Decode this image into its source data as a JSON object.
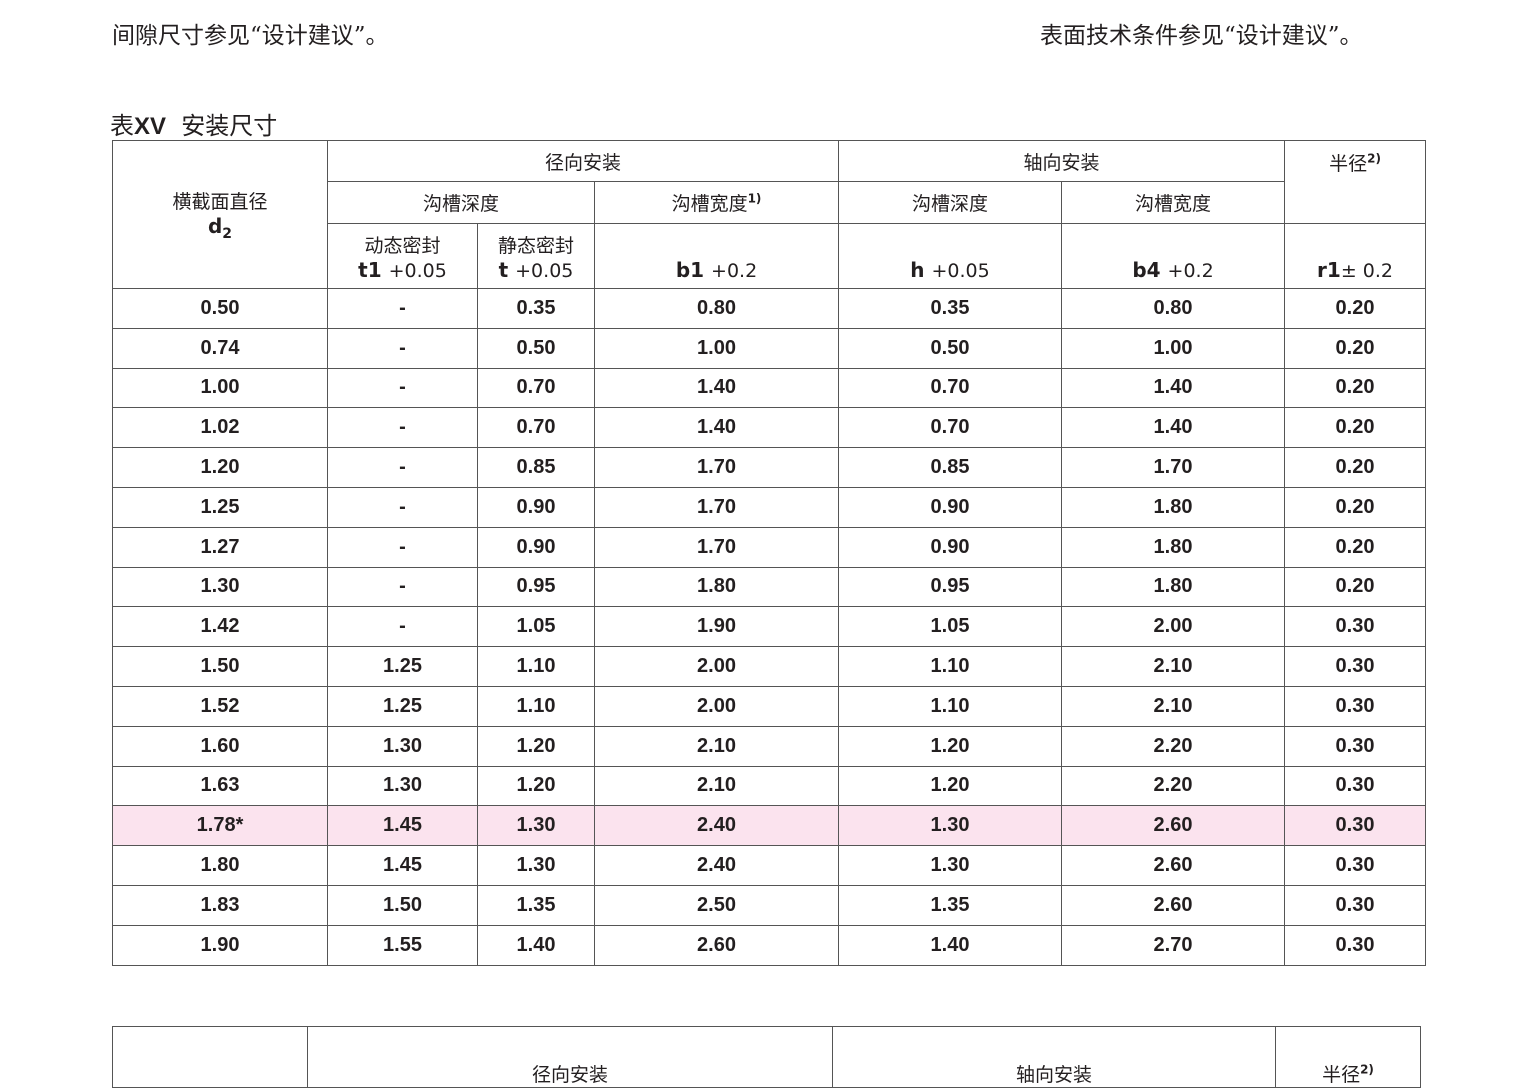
{
  "notes": {
    "left": "间隙尺寸参见“设计建议”。",
    "right": "表面技术条件参见“设计建议”。"
  },
  "caption": {
    "prefix": "表",
    "number": "XV",
    "title": "安装尺寸"
  },
  "headers": {
    "cross_section": "横截面直径",
    "d2": "d",
    "d2_sub": "2",
    "radial": "径向安装",
    "axial": "轴向安装",
    "radius": "半径",
    "radius_sup": "2)",
    "groove_depth": "沟槽深度",
    "groove_width": "沟槽宽度",
    "groove_width_sup": "1)",
    "axial_depth": "沟槽深度",
    "axial_width": "沟槽宽度",
    "dynamic": "动态密封",
    "static": "静态密封",
    "t1": "t1",
    "t1_tol": "+0.05",
    "t": "t",
    "t_tol": "+0.05",
    "b1": "b1",
    "b1_tol": "+0.2",
    "h": "h",
    "h_tol": "+0.05",
    "b4": "b4",
    "b4_tol": "+0.2",
    "r1": "r1",
    "r1_tol": "± 0.2"
  },
  "rows": [
    [
      "0.50",
      "-",
      "0.35",
      "0.80",
      "0.35",
      "0.80",
      "0.20"
    ],
    [
      "0.74",
      "-",
      "0.50",
      "1.00",
      "0.50",
      "1.00",
      "0.20"
    ],
    [
      "1.00",
      "-",
      "0.70",
      "1.40",
      "0.70",
      "1.40",
      "0.20"
    ],
    [
      "1.02",
      "-",
      "0.70",
      "1.40",
      "0.70",
      "1.40",
      "0.20"
    ],
    [
      "1.20",
      "-",
      "0.85",
      "1.70",
      "0.85",
      "1.70",
      "0.20"
    ],
    [
      "1.25",
      "-",
      "0.90",
      "1.70",
      "0.90",
      "1.80",
      "0.20"
    ],
    [
      "1.27",
      "-",
      "0.90",
      "1.70",
      "0.90",
      "1.80",
      "0.20"
    ],
    [
      "1.30",
      "-",
      "0.95",
      "1.80",
      "0.95",
      "1.80",
      "0.20"
    ],
    [
      "1.42",
      "-",
      "1.05",
      "1.90",
      "1.05",
      "2.00",
      "0.30"
    ],
    [
      "1.50",
      "1.25",
      "1.10",
      "2.00",
      "1.10",
      "2.10",
      "0.30"
    ],
    [
      "1.52",
      "1.25",
      "1.10",
      "2.00",
      "1.10",
      "2.10",
      "0.30"
    ],
    [
      "1.60",
      "1.30",
      "1.20",
      "2.10",
      "1.20",
      "2.20",
      "0.30"
    ],
    [
      "1.63",
      "1.30",
      "1.20",
      "2.10",
      "1.20",
      "2.20",
      "0.30"
    ],
    [
      "1.78*",
      "1.45",
      "1.30",
      "2.40",
      "1.30",
      "2.60",
      "0.30"
    ],
    [
      "1.80",
      "1.45",
      "1.30",
      "2.40",
      "1.30",
      "2.60",
      "0.30"
    ],
    [
      "1.83",
      "1.50",
      "1.35",
      "2.50",
      "1.35",
      "2.60",
      "0.30"
    ],
    [
      "1.90",
      "1.55",
      "1.40",
      "2.60",
      "1.40",
      "2.70",
      "0.30"
    ]
  ],
  "highlight_row": "1.78*",
  "highlight_color": "#fbe3ee",
  "second_table": {
    "radial": "径向安装",
    "axial": "轴向安装",
    "radius": "半径",
    "radius_sup": "2)"
  }
}
